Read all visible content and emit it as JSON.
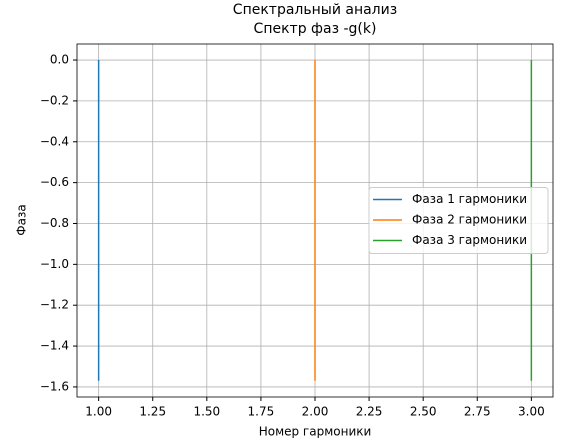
{
  "chart_data": {
    "type": "line",
    "title": "Спектральный анализ",
    "subtitle": "Спектр фаз -g(k)",
    "x_label": "Номер гармоники",
    "y_label": "Фаза",
    "series": [
      {
        "name": "Фаза 1 гармоники",
        "color": "#1f77b4",
        "x": [
          1,
          1
        ],
        "values": [
          0,
          -1.57
        ]
      },
      {
        "name": "Фаза 2 гармоники",
        "color": "#ff7f0e",
        "x": [
          2,
          2
        ],
        "values": [
          0,
          -1.57
        ]
      },
      {
        "name": "Фаза 3 гармоники",
        "color": "#2ca02c",
        "x": [
          3,
          3
        ],
        "values": [
          0,
          -1.57
        ]
      }
    ],
    "xlim": [
      0.9,
      3.1
    ],
    "ylim": [
      -1.6493,
      0.0785
    ],
    "xticks": [
      {
        "value": 1,
        "label": "1.00"
      },
      {
        "value": 1.25,
        "label": "1.25"
      },
      {
        "value": 1.5,
        "label": "1.50"
      },
      {
        "value": 1.75,
        "label": "1.75"
      },
      {
        "value": 2,
        "label": "2.00"
      },
      {
        "value": 2.25,
        "label": "2.25"
      },
      {
        "value": 2.5,
        "label": "2.50"
      },
      {
        "value": 2.75,
        "label": "2.75"
      },
      {
        "value": 3,
        "label": "3.00"
      }
    ],
    "yticks": [
      {
        "value": 0,
        "label": "0.0"
      },
      {
        "value": -0.2,
        "label": "−0.2"
      },
      {
        "value": -0.4,
        "label": "−0.4"
      },
      {
        "value": -0.6,
        "label": "−0.6"
      },
      {
        "value": -0.8,
        "label": "−0.8"
      },
      {
        "value": -1,
        "label": "−1.0"
      },
      {
        "value": -1.2,
        "label": "−1.2"
      },
      {
        "value": -1.4,
        "label": "−1.4"
      },
      {
        "value": -1.6,
        "label": "−1.6"
      }
    ],
    "grid": true,
    "legend": "center right"
  }
}
